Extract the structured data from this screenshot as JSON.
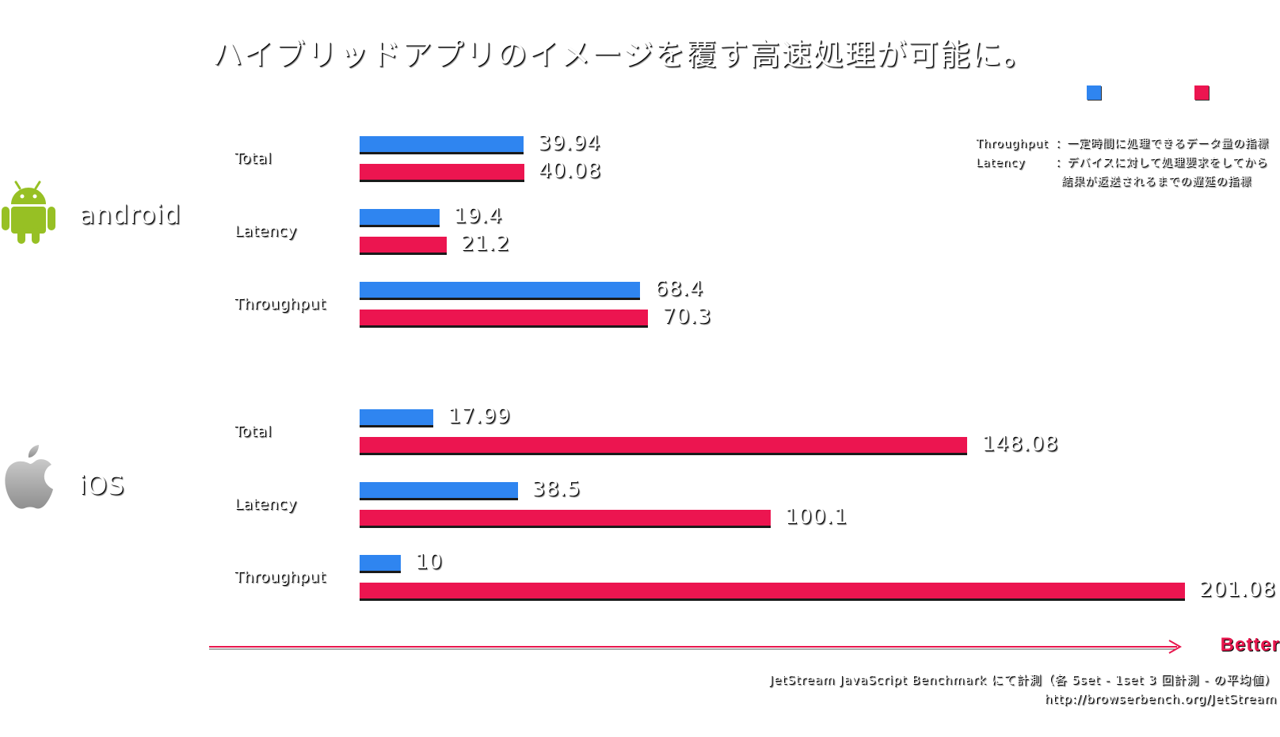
{
  "title": "ハイブリッドアプリのイメージを覆す高速処理が可能に。",
  "colors": {
    "series_a": "#2f85f0",
    "series_b": "#ec1550",
    "better": "#e8174e"
  },
  "legend": [
    {
      "color": "#2f85f0"
    },
    {
      "color": "#ec1550"
    }
  ],
  "note": {
    "throughput_key": "Throughput",
    "throughput_desc": "：一定時間に処理できるデータ量の指標",
    "latency_key": "Latency",
    "latency_desc": "：デバイスに対して処理要求をしてから",
    "latency_desc2": "結果が返送されるまでの遅延の指標"
  },
  "groups": [
    {
      "label": "android",
      "icon": "android-icon"
    },
    {
      "label": "iOS",
      "icon": "apple-icon"
    }
  ],
  "axis_arrow_label": "Better",
  "source_line1": "JetStream JavaScript Benchmark にて計測（各 5set - 1set 3 回計測 - の平均値）",
  "source_line2": "http://browserbench.org/JetStream",
  "chart_data": {
    "type": "bar",
    "orientation": "horizontal",
    "groups": [
      "android",
      "iOS"
    ],
    "categories": [
      "Total",
      "Latency",
      "Throughput"
    ],
    "series": [
      {
        "color": "#2f85f0",
        "values": {
          "android": [
            39.94,
            19.4,
            68.4
          ],
          "iOS": [
            17.99,
            38.5,
            10
          ]
        }
      },
      {
        "color": "#ec1550",
        "values": {
          "android": [
            40.08,
            21.2,
            70.3
          ],
          "iOS": [
            148.08,
            100.1,
            201.08
          ]
        }
      }
    ],
    "value_labels": {
      "android": [
        [
          "39.94",
          "40.08"
        ],
        [
          "19.4",
          "21.2"
        ],
        [
          "68.4",
          "70.3"
        ]
      ],
      "iOS": [
        [
          "17.99",
          "148.08"
        ],
        [
          "38.5",
          "100.1"
        ],
        [
          "10",
          "201.08"
        ]
      ]
    },
    "xlim": [
      0,
      201.08
    ],
    "grid": false,
    "legend": "top-right"
  }
}
